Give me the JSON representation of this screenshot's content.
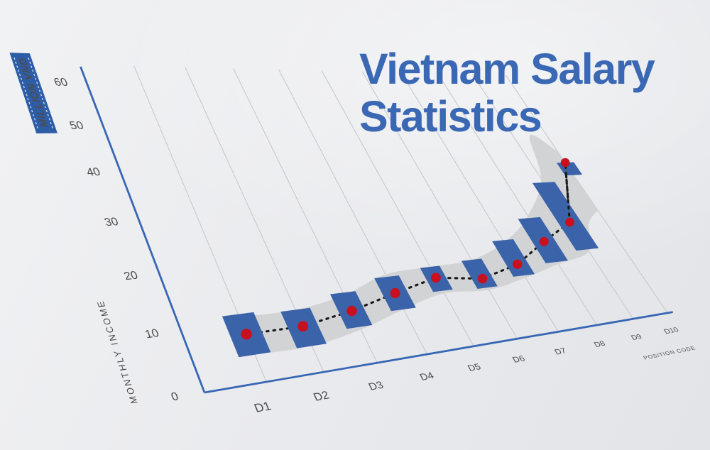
{
  "title": {
    "line1": "Vietnam Salary",
    "line2": "Statistics",
    "color": "#3b68b4"
  },
  "ribbon": {
    "text": "MILLION VND",
    "bg": "#2e5da8",
    "text_color": "#ffffff"
  },
  "chart_data": {
    "type": "line",
    "title": "Vietnam Salary Statistics",
    "xlabel": "POSITION CODE",
    "ylabel": "MONTHLY INCOME",
    "unit_label": "MILLION VND",
    "categories": [
      "D1",
      "D2",
      "D3",
      "D4",
      "D5",
      "D6",
      "D7",
      "D8",
      "D9",
      "D10"
    ],
    "values": [
      8,
      8,
      9.5,
      11.7,
      13.7,
      12.4,
      14.5,
      18.8,
      22.7,
      38
    ],
    "box_low": [
      4.5,
      4.5,
      6.5,
      8.5,
      11,
      10.5,
      12,
      14,
      16,
      34.5
    ],
    "box_high": [
      11.5,
      11,
      13,
      15,
      16,
      16.5,
      20,
      24.5,
      33,
      38
    ],
    "box_half_width": [
      0.27,
      0.27,
      0.25,
      0.26,
      0.22,
      0.24,
      0.27,
      0.3,
      0.32,
      0.26
    ],
    "band": {
      "u": [
        1,
        2,
        3,
        4,
        5,
        6,
        7,
        8,
        9,
        9.5,
        10
      ],
      "low": [
        4.5,
        4.5,
        6,
        8.5,
        10.5,
        10,
        11.5,
        13.5,
        15.5,
        22,
        25
      ],
      "high": [
        11,
        11,
        12.5,
        15.5,
        16,
        16.5,
        19.5,
        25,
        34,
        46,
        41
      ]
    },
    "y_ticks": [
      0,
      10,
      20,
      30,
      40,
      50,
      60
    ],
    "ylim": [
      0,
      60
    ],
    "grid": "vertical-only",
    "legend": "none",
    "marks": [
      "dotted-trend-line",
      "range-boxes",
      "confidence-band",
      "point-markers"
    ],
    "colors": {
      "box": "#3b63a9",
      "dot": "#c9101e",
      "band": "#d2d3d5",
      "axis": "#3767b4",
      "grid": "#c7c9cc",
      "tick_text": "#4b4b4d",
      "trend_line": "#191919"
    }
  }
}
